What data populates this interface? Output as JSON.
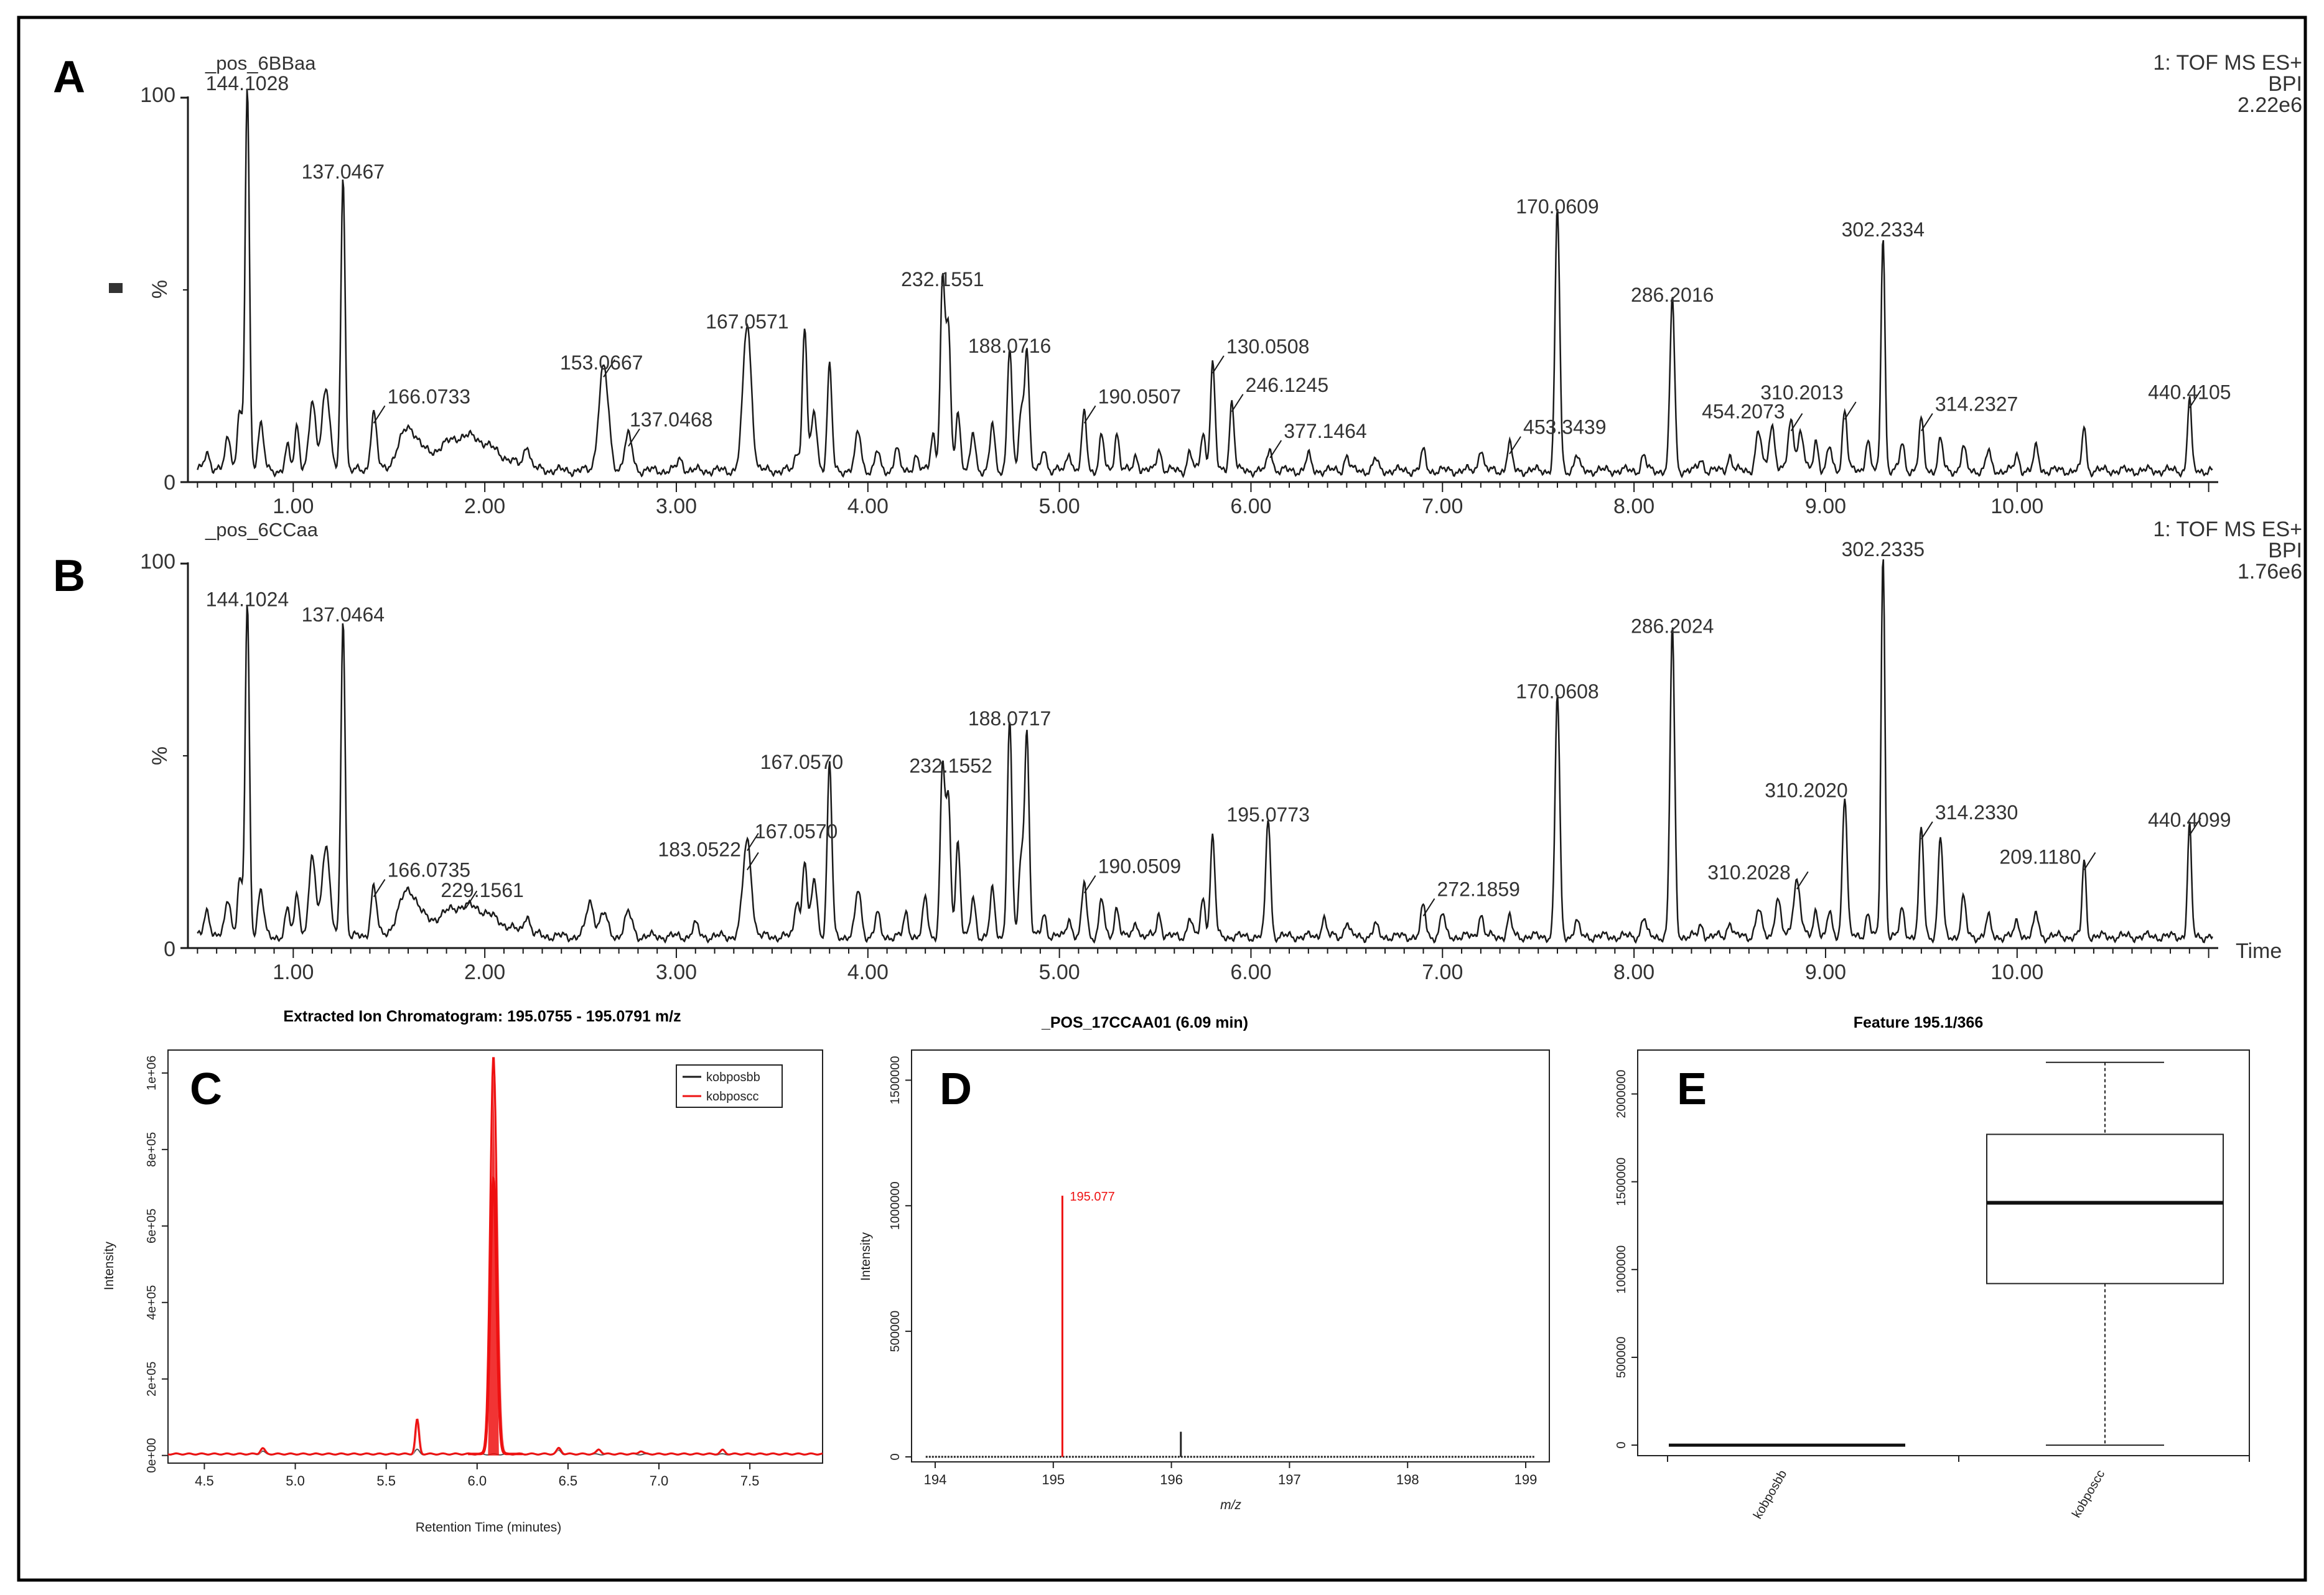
{
  "colors": {
    "ink": "#1a1a1a",
    "red": "#ee1111",
    "pink": "#f2a0a0",
    "grid": "#000000"
  },
  "chart_data": [
    {
      "panel": "A",
      "type": "line",
      "title": "_pos_6BBaa",
      "info": [
        "1: TOF MS ES+",
        "BPI",
        "2.22e6"
      ],
      "ylabel": "%",
      "xlim": [
        0.45,
        11.05
      ],
      "ylim": [
        0,
        100
      ],
      "y_ticks": [
        "0",
        "100"
      ],
      "x_ticks": [
        1.0,
        2.0,
        3.0,
        4.0,
        5.0,
        6.0,
        7.0,
        8.0,
        9.0,
        10.0
      ],
      "x_tick_labels": [
        "1.00",
        "2.00",
        "3.00",
        "4.00",
        "5.00",
        "6.00",
        "7.00",
        "8.00",
        "9.00",
        "10.00"
      ],
      "baseline": 3,
      "peaks": [
        [
          0.55,
          5,
          0.015
        ],
        [
          0.66,
          9,
          0.015
        ],
        [
          0.72,
          16,
          0.012
        ],
        [
          0.76,
          100,
          0.011
        ],
        [
          0.83,
          12,
          0.015
        ],
        [
          0.97,
          6,
          0.012
        ],
        [
          1.02,
          12,
          0.012
        ],
        [
          1.1,
          17,
          0.018
        ],
        [
          1.17,
          22,
          0.02
        ],
        [
          1.26,
          77,
          0.011
        ],
        [
          1.42,
          15,
          0.015
        ],
        [
          1.6,
          10,
          0.05
        ],
        [
          1.9,
          9,
          0.15
        ],
        [
          2.22,
          6,
          0.015
        ],
        [
          2.62,
          27,
          0.025
        ],
        [
          2.75,
          9,
          0.02
        ],
        [
          3.02,
          3,
          0.015
        ],
        [
          3.37,
          38,
          0.022
        ],
        [
          3.63,
          5,
          0.012
        ],
        [
          3.67,
          37,
          0.012
        ],
        [
          3.72,
          15,
          0.015
        ],
        [
          3.8,
          27,
          0.012
        ],
        [
          3.95,
          10,
          0.015
        ],
        [
          4.05,
          5,
          0.012
        ],
        [
          4.15,
          6,
          0.012
        ],
        [
          4.25,
          4,
          0.012
        ],
        [
          4.34,
          10,
          0.012
        ],
        [
          4.39,
          49,
          0.012
        ],
        [
          4.42,
          37,
          0.012
        ],
        [
          4.47,
          16,
          0.012
        ],
        [
          4.55,
          10,
          0.012
        ],
        [
          4.65,
          12,
          0.012
        ],
        [
          4.74,
          32,
          0.012
        ],
        [
          4.8,
          15,
          0.012
        ],
        [
          4.83,
          32,
          0.012
        ],
        [
          4.92,
          6,
          0.012
        ],
        [
          5.05,
          5,
          0.012
        ],
        [
          5.13,
          15,
          0.012
        ],
        [
          5.22,
          9,
          0.012
        ],
        [
          5.3,
          10,
          0.012
        ],
        [
          5.4,
          4,
          0.012
        ],
        [
          5.52,
          6,
          0.012
        ],
        [
          5.68,
          5,
          0.012
        ],
        [
          5.75,
          10,
          0.012
        ],
        [
          5.8,
          28,
          0.012
        ],
        [
          5.9,
          18,
          0.012
        ],
        [
          6.1,
          6,
          0.012
        ],
        [
          6.3,
          4,
          0.012
        ],
        [
          6.5,
          4,
          0.012
        ],
        [
          6.65,
          3,
          0.012
        ],
        [
          6.9,
          5,
          0.012
        ],
        [
          7.2,
          6,
          0.012
        ],
        [
          7.35,
          7,
          0.012
        ],
        [
          7.6,
          68,
          0.012
        ],
        [
          7.7,
          4,
          0.012
        ],
        [
          8.05,
          4,
          0.012
        ],
        [
          8.2,
          45,
          0.012
        ],
        [
          8.35,
          3,
          0.012
        ],
        [
          8.5,
          4,
          0.012
        ],
        [
          8.65,
          10,
          0.015
        ],
        [
          8.72,
          12,
          0.015
        ],
        [
          8.82,
          13,
          0.015
        ],
        [
          8.87,
          10,
          0.015
        ],
        [
          8.95,
          8,
          0.012
        ],
        [
          9.02,
          6,
          0.012
        ],
        [
          9.1,
          16,
          0.012
        ],
        [
          9.22,
          8,
          0.012
        ],
        [
          9.3,
          62,
          0.01
        ],
        [
          9.4,
          7,
          0.012
        ],
        [
          9.5,
          13,
          0.012
        ],
        [
          9.6,
          8,
          0.012
        ],
        [
          9.72,
          6,
          0.012
        ],
        [
          9.85,
          5,
          0.012
        ],
        [
          10.0,
          4,
          0.012
        ],
        [
          10.1,
          6,
          0.012
        ],
        [
          10.35,
          12,
          0.01
        ],
        [
          10.9,
          19,
          0.01
        ]
      ],
      "peak_labels": [
        {
          "rt": 0.76,
          "y": 100,
          "text": "144.1028"
        },
        {
          "rt": 1.26,
          "y": 77,
          "text": "137.0467"
        },
        {
          "rt": 1.42,
          "y": 15,
          "text": "166.0733"
        },
        {
          "rt": 2.62,
          "y": 27,
          "text": "153.0667"
        },
        {
          "rt": 2.75,
          "y": 9,
          "text": "137.0468"
        },
        {
          "rt": 3.37,
          "y": 38,
          "text": "167.0571"
        },
        {
          "rt": 4.39,
          "y": 49,
          "text": "232.1551"
        },
        {
          "rt": 4.74,
          "y": 32,
          "text": "188.0716"
        },
        {
          "rt": 5.13,
          "y": 15,
          "text": "190.0507"
        },
        {
          "rt": 5.8,
          "y": 28,
          "text": "130.0508"
        },
        {
          "rt": 5.9,
          "y": 18,
          "text": "246.1245"
        },
        {
          "rt": 6.1,
          "y": 6,
          "text": "377.1464"
        },
        {
          "rt": 7.35,
          "y": 7,
          "text": "453.3439"
        },
        {
          "rt": 7.6,
          "y": 68,
          "text": "170.0609"
        },
        {
          "rt": 8.2,
          "y": 45,
          "text": "286.2016"
        },
        {
          "rt": 8.82,
          "y": 13,
          "text": "454.2073"
        },
        {
          "rt": 9.1,
          "y": 16,
          "text": "310.2013"
        },
        {
          "rt": 9.3,
          "y": 62,
          "text": "302.2334"
        },
        {
          "rt": 9.5,
          "y": 13,
          "text": "314.2327"
        },
        {
          "rt": 10.9,
          "y": 19,
          "text": "440.4105"
        }
      ]
    },
    {
      "panel": "B",
      "type": "line",
      "title": "_pos_6CCaa",
      "info": [
        "1: TOF MS ES+",
        "BPI",
        "1.76e6"
      ],
      "ylabel": "%",
      "xlabel": "Time",
      "xlim": [
        0.45,
        11.05
      ],
      "ylim": [
        0,
        100
      ],
      "y_ticks": [
        "0",
        "100"
      ],
      "x_ticks": [
        1.0,
        2.0,
        3.0,
        4.0,
        5.0,
        6.0,
        7.0,
        8.0,
        9.0,
        10.0
      ],
      "x_tick_labels": [
        "1.00",
        "2.00",
        "3.00",
        "4.00",
        "5.00",
        "6.00",
        "7.00",
        "8.00",
        "9.00",
        "10.00"
      ],
      "baseline": 3,
      "peaks": [
        [
          0.55,
          7,
          0.015
        ],
        [
          0.66,
          10,
          0.015
        ],
        [
          0.72,
          15,
          0.012
        ],
        [
          0.76,
          87,
          0.011
        ],
        [
          0.83,
          12,
          0.015
        ],
        [
          0.97,
          7,
          0.012
        ],
        [
          1.02,
          12,
          0.012
        ],
        [
          1.1,
          20,
          0.018
        ],
        [
          1.17,
          24,
          0.02
        ],
        [
          1.26,
          83,
          0.011
        ],
        [
          1.42,
          13,
          0.015
        ],
        [
          1.6,
          11,
          0.05
        ],
        [
          1.9,
          8,
          0.15
        ],
        [
          2.22,
          5,
          0.015
        ],
        [
          2.55,
          9,
          0.02
        ],
        [
          2.62,
          6,
          0.02
        ],
        [
          2.75,
          6,
          0.02
        ],
        [
          3.1,
          3,
          0.015
        ],
        [
          3.37,
          25,
          0.022
        ],
        [
          3.63,
          10,
          0.012
        ],
        [
          3.67,
          20,
          0.012
        ],
        [
          3.72,
          15,
          0.015
        ],
        [
          3.8,
          45,
          0.012
        ],
        [
          3.95,
          12,
          0.015
        ],
        [
          4.05,
          6,
          0.012
        ],
        [
          4.2,
          6,
          0.012
        ],
        [
          4.3,
          10,
          0.012
        ],
        [
          4.39,
          44,
          0.012
        ],
        [
          4.42,
          35,
          0.012
        ],
        [
          4.47,
          25,
          0.012
        ],
        [
          4.55,
          10,
          0.012
        ],
        [
          4.65,
          12,
          0.012
        ],
        [
          4.74,
          56,
          0.012
        ],
        [
          4.8,
          20,
          0.012
        ],
        [
          4.83,
          53,
          0.012
        ],
        [
          4.92,
          6,
          0.012
        ],
        [
          5.05,
          5,
          0.012
        ],
        [
          5.13,
          14,
          0.012
        ],
        [
          5.22,
          10,
          0.012
        ],
        [
          5.3,
          8,
          0.012
        ],
        [
          5.4,
          4,
          0.012
        ],
        [
          5.52,
          6,
          0.012
        ],
        [
          5.68,
          5,
          0.012
        ],
        [
          5.75,
          10,
          0.012
        ],
        [
          5.8,
          26,
          0.012
        ],
        [
          6.09,
          31,
          0.012
        ],
        [
          6.38,
          5,
          0.012
        ],
        [
          6.5,
          4,
          0.012
        ],
        [
          6.65,
          3,
          0.012
        ],
        [
          6.9,
          8,
          0.012
        ],
        [
          7.0,
          6,
          0.012
        ],
        [
          7.2,
          6,
          0.012
        ],
        [
          7.35,
          5,
          0.012
        ],
        [
          7.6,
          63,
          0.012
        ],
        [
          7.7,
          4,
          0.012
        ],
        [
          8.05,
          5,
          0.012
        ],
        [
          8.2,
          80,
          0.012
        ],
        [
          8.35,
          3,
          0.012
        ],
        [
          8.5,
          4,
          0.012
        ],
        [
          8.65,
          7,
          0.015
        ],
        [
          8.75,
          10,
          0.015
        ],
        [
          8.85,
          15,
          0.018
        ],
        [
          8.95,
          7,
          0.012
        ],
        [
          9.02,
          6,
          0.012
        ],
        [
          9.1,
          37,
          0.012
        ],
        [
          9.22,
          6,
          0.012
        ],
        [
          9.3,
          100,
          0.01
        ],
        [
          9.4,
          7,
          0.012
        ],
        [
          9.5,
          28,
          0.012
        ],
        [
          9.6,
          26,
          0.012
        ],
        [
          9.72,
          10,
          0.012
        ],
        [
          9.85,
          5,
          0.012
        ],
        [
          10.0,
          4,
          0.012
        ],
        [
          10.1,
          6,
          0.012
        ],
        [
          10.35,
          20,
          0.01
        ],
        [
          10.9,
          29,
          0.01
        ]
      ],
      "peak_labels": [
        {
          "rt": 0.76,
          "y": 87,
          "text": "144.1024"
        },
        {
          "rt": 1.26,
          "y": 83,
          "text": "137.0464"
        },
        {
          "rt": 1.42,
          "y": 13,
          "text": "166.0735"
        },
        {
          "rt": 1.9,
          "y": 10,
          "text": "229.1561"
        },
        {
          "rt": 3.37,
          "y": 20,
          "text": "183.0522"
        },
        {
          "rt": 3.37,
          "y": 25,
          "text": "167.0570"
        },
        {
          "rt": 3.8,
          "y": 45,
          "text": "167.0570"
        },
        {
          "rt": 4.39,
          "y": 44,
          "text": "232.1552"
        },
        {
          "rt": 4.74,
          "y": 56,
          "text": "188.0717"
        },
        {
          "rt": 5.13,
          "y": 14,
          "text": "190.0509"
        },
        {
          "rt": 6.09,
          "y": 31,
          "text": "195.0773"
        },
        {
          "rt": 6.9,
          "y": 8,
          "text": "272.1859"
        },
        {
          "rt": 7.6,
          "y": 63,
          "text": "170.0608"
        },
        {
          "rt": 8.2,
          "y": 80,
          "text": "286.2024"
        },
        {
          "rt": 8.85,
          "y": 15,
          "text": "310.2028"
        },
        {
          "rt": 9.1,
          "y": 37,
          "text": "310.2020"
        },
        {
          "rt": 9.3,
          "y": 100,
          "text": "302.2335"
        },
        {
          "rt": 9.5,
          "y": 28,
          "text": "314.2330"
        },
        {
          "rt": 10.35,
          "y": 20,
          "text": "209.1180"
        },
        {
          "rt": 10.9,
          "y": 29,
          "text": "440.4099"
        }
      ]
    },
    {
      "panel": "C",
      "type": "line",
      "title": "Extracted Ion Chromatogram: 195.0755 - 195.0791 m/z",
      "xlabel": "Retention Time (minutes)",
      "ylabel": "Intensity",
      "xlim": [
        4.3,
        7.9
      ],
      "ylim": [
        -20000,
        1060000
      ],
      "x_ticks": [
        4.5,
        5.0,
        5.5,
        6.0,
        6.5,
        7.0,
        7.5
      ],
      "x_tick_labels": [
        "4.5",
        "5.0",
        "5.5",
        "6.0",
        "6.5",
        "7.0",
        "7.5"
      ],
      "y_ticks": [
        0,
        200000,
        400000,
        600000,
        800000,
        1000000
      ],
      "y_tick_labels": [
        "0e+00",
        "2e+05",
        "4e+05",
        "6e+05",
        "8e+05",
        "1e+06"
      ],
      "legend": [
        "kobposbb",
        "kobposcc"
      ],
      "series": [
        {
          "name": "kobposbb",
          "baseline": 3000,
          "peaks": [
            [
              4.82,
              8000,
              0.012
            ],
            [
              5.67,
              12000,
              0.012
            ],
            [
              6.45,
              10000,
              0.012
            ]
          ]
        },
        {
          "name": "kobposcc",
          "baseline": 4000,
          "peaks": [
            [
              4.82,
              15000,
              0.012
            ],
            [
              5.67,
              90000,
              0.01
            ],
            [
              6.09,
              1040000,
              0.018
            ],
            [
              6.45,
              15000,
              0.012
            ],
            [
              6.67,
              12000,
              0.012
            ],
            [
              6.9,
              8000,
              0.012
            ],
            [
              7.35,
              10000,
              0.012
            ]
          ]
        }
      ],
      "secondary_peak": [
        6.09,
        720000,
        0.017
      ]
    },
    {
      "panel": "D",
      "type": "bar",
      "title": "_POS_17CCAA01 (6.09 min)",
      "xlabel": "m/z",
      "ylabel": "Intensity",
      "xlim": [
        193.8,
        199.2
      ],
      "ylim": [
        -20000,
        1620000
      ],
      "x_ticks": [
        194,
        195,
        196,
        197,
        198,
        199
      ],
      "x_tick_labels": [
        "194",
        "195",
        "196",
        "197",
        "198",
        "199"
      ],
      "y_ticks": [
        0,
        500000,
        1000000,
        1500000
      ],
      "y_tick_labels": [
        "0",
        "500000",
        "1000000",
        "1500000"
      ],
      "sticks": [
        {
          "mz": 195.077,
          "intensity": 1040000,
          "label": "195.077"
        },
        {
          "mz": 196.08,
          "intensity": 100000,
          "label": ""
        }
      ]
    },
    {
      "panel": "E",
      "type": "box",
      "title": "Feature  195.1/366",
      "categories": [
        "kobposbb",
        "kobposcc"
      ],
      "ylim": [
        -60000,
        2250000
      ],
      "y_ticks": [
        0,
        500000,
        1000000,
        1500000,
        2000000
      ],
      "y_tick_labels": [
        "0",
        "500000",
        "1000000",
        "1500000",
        "2000000"
      ],
      "boxes": [
        {
          "name": "kobposbb",
          "min": 0,
          "q1": 0,
          "median": 0,
          "q3": 0,
          "max": 0
        },
        {
          "name": "kobposcc",
          "min": 0,
          "q1": 920000,
          "median": 1380000,
          "q3": 1770000,
          "max": 2180000
        }
      ]
    }
  ]
}
